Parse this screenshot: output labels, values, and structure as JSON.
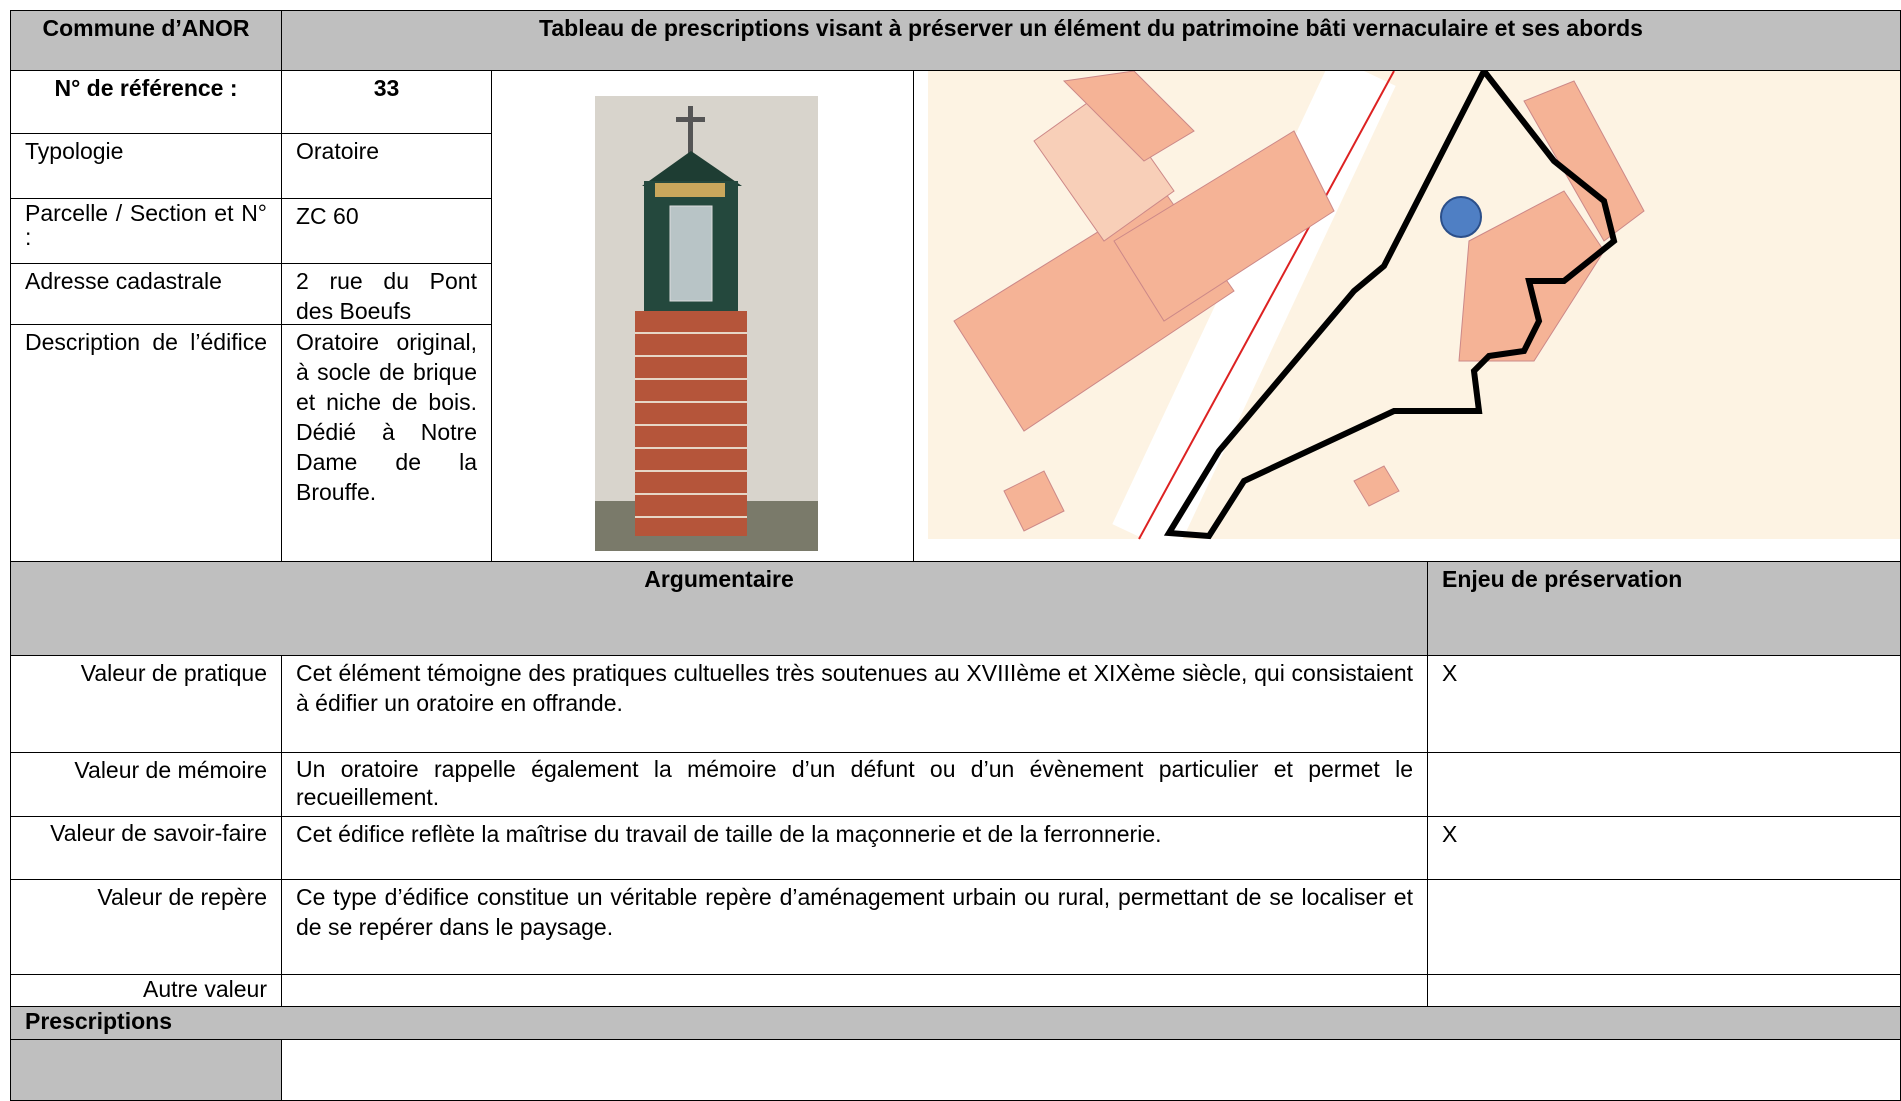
{
  "header": {
    "commune": "Commune d’ANOR",
    "title": "Tableau de prescriptions visant à préserver un élément du patrimoine bâti vernaculaire et ses abords"
  },
  "reference": {
    "label": "N° de référence :",
    "value": "33"
  },
  "info": [
    {
      "label": "Typologie",
      "value": "Oratoire"
    },
    {
      "label": "Parcelle / Section et N° :",
      "value": "ZC 60"
    },
    {
      "label": "Adresse cadastrale",
      "value": "2 rue du Pont des Boeufs"
    },
    {
      "label": "Description de l’édifice",
      "value": "Oratoire original, à socle de brique et niche de bois. Dédié à Notre Dame de la Brouffe."
    }
  ],
  "table": {
    "header": {
      "argumentaire": "Argumentaire",
      "enjeu": "Enjeu de préservation"
    },
    "rows": [
      {
        "label": "Valeur de pratique",
        "text": "Cet élément témoigne des pratiques cultuelles très soutenues au XVIIIème et XIXème siècle, qui consistaient à édifier un oratoire en offrande.",
        "enjeu": "X"
      },
      {
        "label": "Valeur de mémoire",
        "text": "Un oratoire rappelle également la mémoire d’un défunt ou d’un évènement particulier et permet le recueillement."
      },
      {
        "label": "Valeur de savoir-faire",
        "text": "Cet édifice reflète la maîtrise du travail de taille de la maçonnerie et de la ferronnerie.",
        "enjeu": "X"
      },
      {
        "label": "Valeur de repère",
        "text": "Ce type d’édifice constitue un véritable repère d’aménagement urbain ou rural, permettant de se localiser et de se repérer dans le paysage."
      },
      {
        "label": "Autre valeur"
      }
    ]
  },
  "prescriptions": {
    "label": "Prescriptions"
  }
}
